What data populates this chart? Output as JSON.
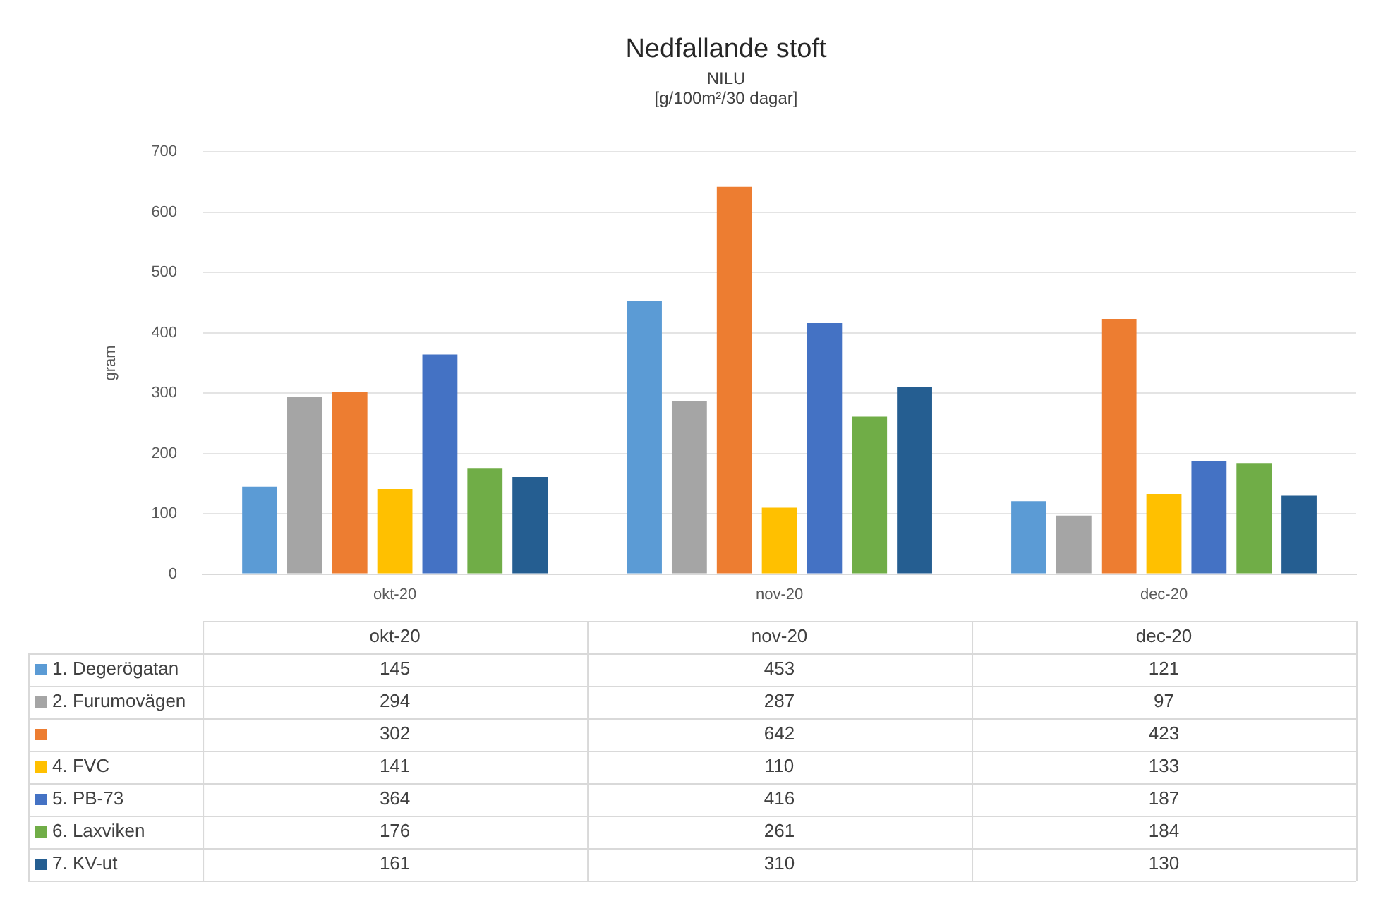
{
  "chart_data": {
    "type": "bar",
    "title": "Nedfallande stoft",
    "subtitle": "NILU",
    "annotations": [
      "[g/100m²/30 dagar]"
    ],
    "ylabel": "gram",
    "categories": [
      "okt-20",
      "nov-20",
      "dec-20"
    ],
    "series": [
      {
        "name": "1. Degerögatan",
        "color": "#5b9bd5",
        "values": [
          145,
          453,
          121
        ]
      },
      {
        "name": "2. Furumovägen",
        "color": "#a5a5a5",
        "values": [
          294,
          287,
          97
        ]
      },
      {
        "color": "#ed7d31",
        "values": [
          302,
          642,
          423
        ]
      },
      {
        "name": "4. FVC",
        "color": "#ffc000",
        "values": [
          141,
          110,
          133
        ]
      },
      {
        "name": "5. PB-73",
        "color": "#4472c4",
        "values": [
          364,
          416,
          187
        ]
      },
      {
        "name": "6. Laxviken",
        "color": "#70ad47",
        "values": [
          176,
          261,
          184
        ]
      },
      {
        "name": "7. KV-ut",
        "color": "#255e91",
        "values": [
          161,
          310,
          130
        ]
      }
    ],
    "ylim": [
      0,
      700
    ],
    "yticks": [
      0,
      100,
      200,
      300,
      400,
      500,
      600,
      700
    ],
    "grid": "y",
    "legend": "bottom",
    "data_labels": true
  }
}
